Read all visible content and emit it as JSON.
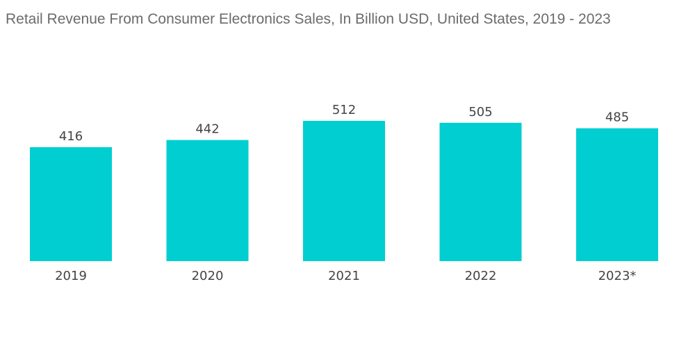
{
  "chart_data": {
    "type": "bar",
    "title": "Retail Revenue From Consumer Electronics Sales, In Billion USD, United States, 2019 - 2023",
    "categories": [
      "2019",
      "2020",
      "2021",
      "2022",
      "2023*"
    ],
    "values": [
      416,
      442,
      512,
      505,
      485
    ],
    "xlabel": "",
    "ylabel": "",
    "ylim": [
      0,
      512
    ],
    "grid": false,
    "legend": "none",
    "bar_color": "#00ced1"
  }
}
